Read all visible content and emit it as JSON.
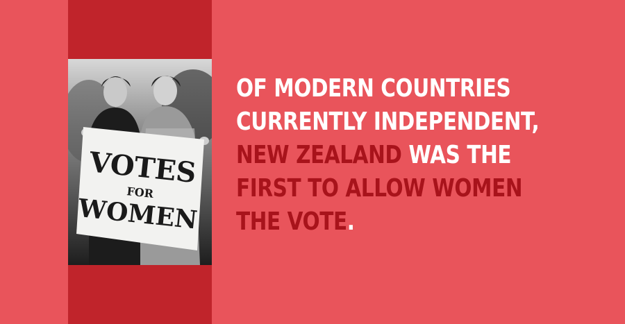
{
  "photo": {
    "sign": {
      "line1": "VOTES",
      "line2": "FOR",
      "line3": "WOMEN"
    }
  },
  "headline": {
    "line1": "OF MODERN COUNTRIES",
    "line2": "CURRENTLY INDEPENDENT,",
    "line3_highlight": "NEW ZEALAND",
    "line3_rest": " WAS THE",
    "line4_highlight": "FIRST TO ALLOW WOMEN",
    "line5_highlight": "THE VOTE",
    "line5_end": "."
  },
  "colors": {
    "background": "#e9545b",
    "band": "#c0242b",
    "text": "#ffffff",
    "highlight": "#a8131b"
  }
}
